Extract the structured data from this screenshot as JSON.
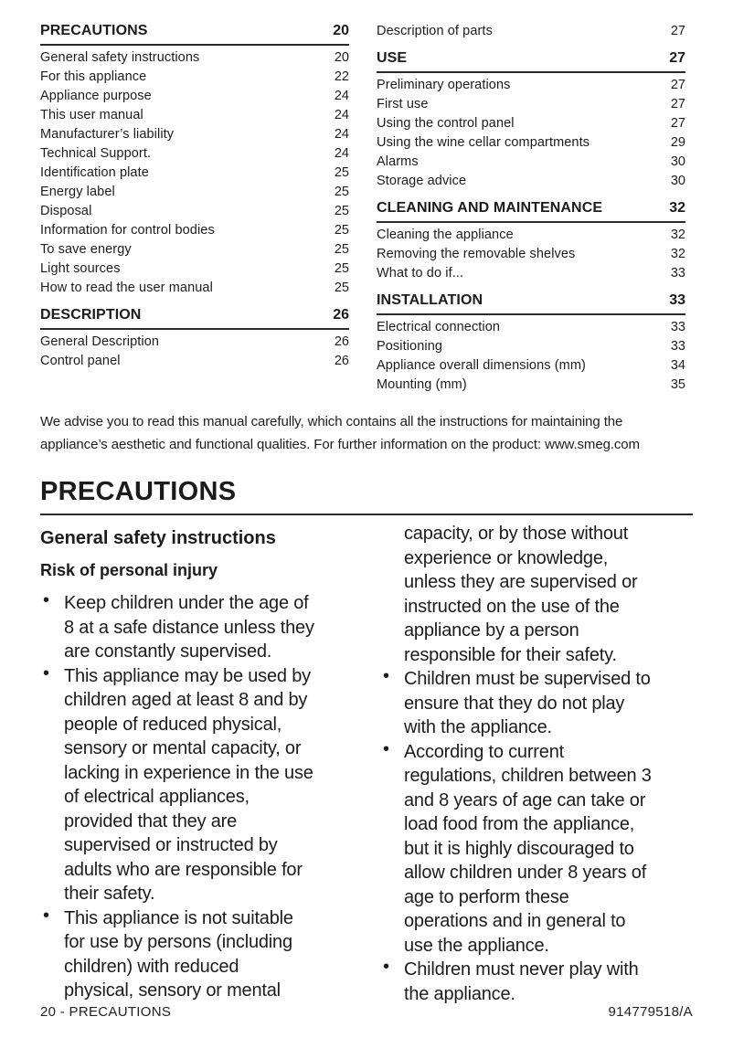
{
  "toc": {
    "left": [
      {
        "type": "header",
        "label": "PRECAUTIONS",
        "page": "20"
      },
      {
        "type": "item",
        "label": "General safety instructions",
        "page": "20"
      },
      {
        "type": "item",
        "label": "For this appliance",
        "page": "22"
      },
      {
        "type": "item",
        "label": "Appliance purpose",
        "page": "24"
      },
      {
        "type": "item",
        "label": "This user manual",
        "page": "24"
      },
      {
        "type": "item",
        "label": "Manufacturer’s liability",
        "page": "24"
      },
      {
        "type": "item",
        "label": "Technical Support.",
        "page": "24"
      },
      {
        "type": "item",
        "label": "Identification plate",
        "page": "25"
      },
      {
        "type": "item",
        "label": "Energy label",
        "page": "25"
      },
      {
        "type": "item",
        "label": "Disposal",
        "page": "25"
      },
      {
        "type": "item",
        "label": "Information for control bodies",
        "page": "25"
      },
      {
        "type": "item",
        "label": "To save energy",
        "page": "25"
      },
      {
        "type": "item",
        "label": "Light sources",
        "page": "25"
      },
      {
        "type": "item",
        "label": "How to read the user manual",
        "page": "25"
      },
      {
        "type": "header",
        "label": "DESCRIPTION",
        "page": "26"
      },
      {
        "type": "item",
        "label": "General Description",
        "page": "26"
      },
      {
        "type": "item",
        "label": "Control panel",
        "page": "26"
      }
    ],
    "right": [
      {
        "type": "item",
        "label": "Description of parts",
        "page": "27"
      },
      {
        "type": "header",
        "label": "USE",
        "page": "27"
      },
      {
        "type": "item",
        "label": "Preliminary operations",
        "page": "27"
      },
      {
        "type": "item",
        "label": "First use",
        "page": "27"
      },
      {
        "type": "item",
        "label": "Using the control panel",
        "page": "27"
      },
      {
        "type": "item",
        "label": "Using the wine cellar compartments",
        "page": "29"
      },
      {
        "type": "item",
        "label": "Alarms",
        "page": "30"
      },
      {
        "type": "item",
        "label": "Storage advice",
        "page": "30"
      },
      {
        "type": "header",
        "label": "CLEANING AND MAINTENANCE",
        "page": "32"
      },
      {
        "type": "item",
        "label": "Cleaning the appliance",
        "page": "32"
      },
      {
        "type": "item",
        "label": "Removing the removable shelves",
        "page": "32"
      },
      {
        "type": "item",
        "label": "What to do if...",
        "page": "33"
      },
      {
        "type": "header",
        "label": "INSTALLATION",
        "page": "33"
      },
      {
        "type": "item",
        "label": "Electrical connection",
        "page": "33"
      },
      {
        "type": "item",
        "label": "Positioning",
        "page": "33"
      },
      {
        "type": "item",
        "label": "Appliance overall dimensions (mm)",
        "page": "34"
      },
      {
        "type": "item",
        "label": "Mounting (mm)",
        "page": "35"
      }
    ]
  },
  "intro": "We advise you to read this manual carefully, which contains all the instructions for maintaining the\nappliance’s aesthetic and functional qualities. For further information on the product: www.smeg.com",
  "section": {
    "title": "PRECAUTIONS",
    "heading": "General safety instructions",
    "subheading": "Risk of personal injury",
    "columns": {
      "left": [
        {
          "bullet": true,
          "text": "Keep children under the age of\n8 at a safe distance unless they\nare constantly supervised."
        },
        {
          "bullet": true,
          "text": "This appliance may be used by\nchildren aged at least 8 and by\npeople of reduced physical,\nsensory or mental capacity, or\nlacking in experience in the use\nof electrical appliances,\nprovided that they are\nsupervised or instructed by\nadults who are responsible for\ntheir safety."
        },
        {
          "bullet": true,
          "text": "This appliance is not suitable\nfor use by persons (including\nchildren) with reduced\nphysical, sensory or mental"
        }
      ],
      "right": [
        {
          "bullet": false,
          "text": "capacity, or by those without\nexperience or knowledge,\nunless they are supervised or\ninstructed on the use of the\nappliance by a person\nresponsible for their safety."
        },
        {
          "bullet": true,
          "text": "Children must be supervised to\nensure that they do not play\nwith the appliance."
        },
        {
          "bullet": true,
          "text": "According to current\nregulations, children between 3\nand 8 years of age can take or\nload food from the appliance,\nbut it is highly discouraged to\nallow children under 8 years of\nage to perform these\noperations and in general to\nuse the appliance."
        },
        {
          "bullet": true,
          "text": "Children must never play with\nthe appliance."
        }
      ]
    }
  },
  "footer": {
    "left": "20 - PRECAUTIONS",
    "right": "914779518/A"
  }
}
